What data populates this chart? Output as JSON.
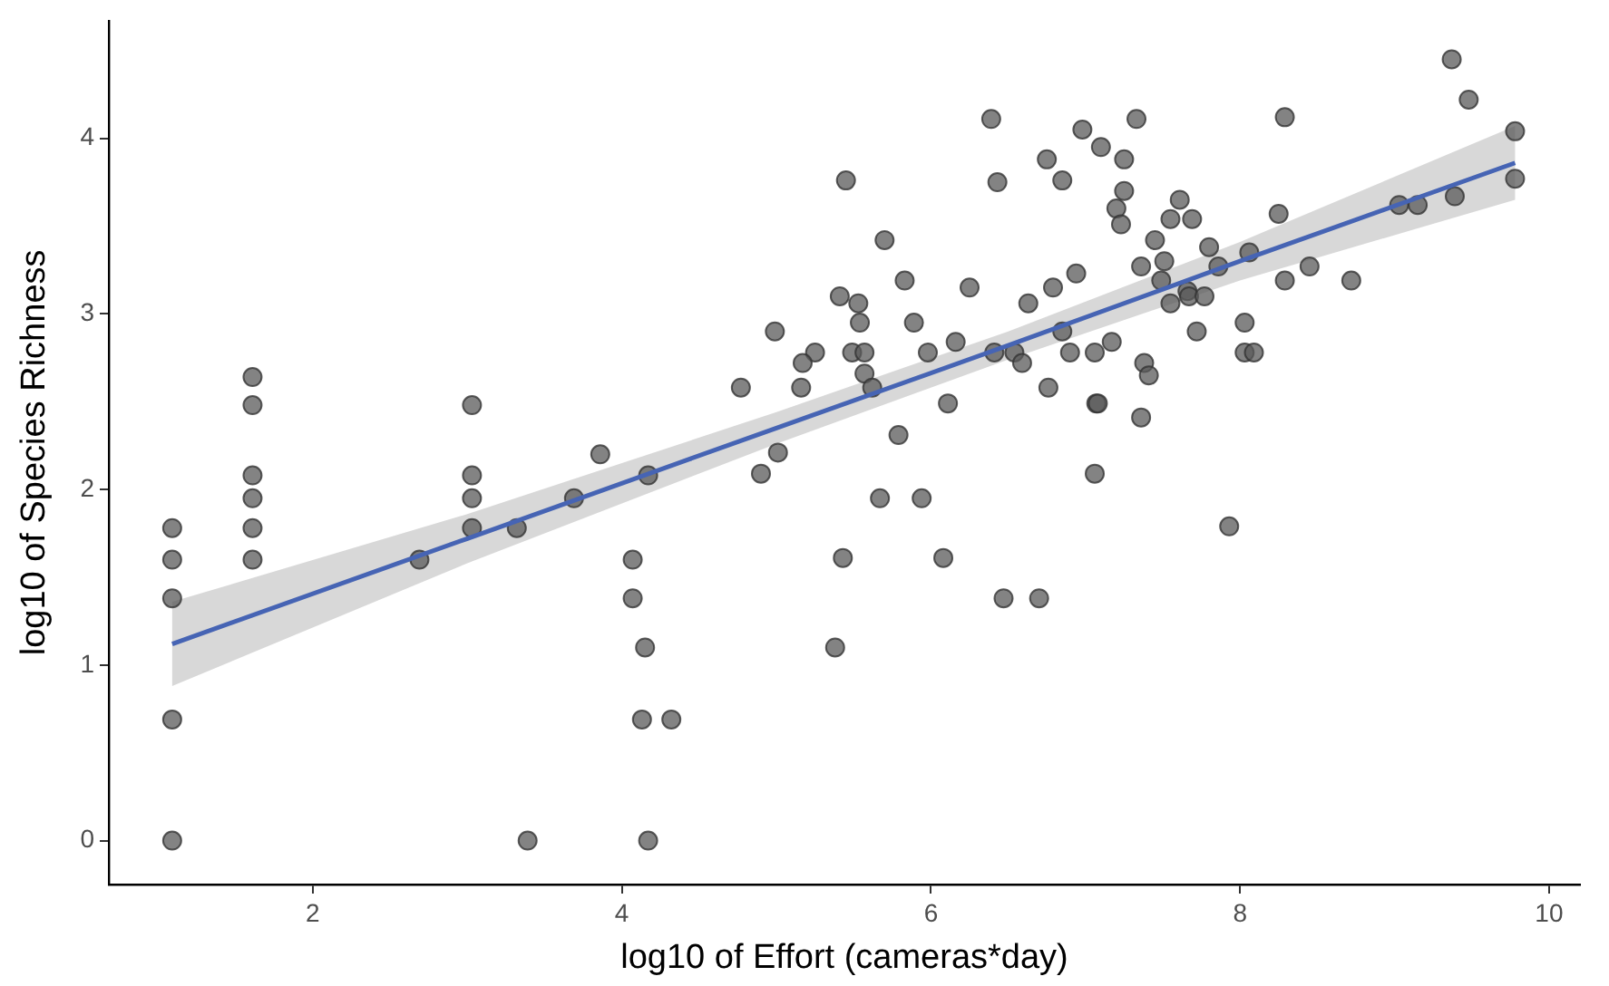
{
  "chart_data": {
    "type": "scatter",
    "xlabel": "log10 of Effort (cameras*day)",
    "ylabel": "log10 of Species Richness",
    "xlim": [
      0.68,
      10.2
    ],
    "ylim": [
      -0.25,
      4.67
    ],
    "xticks": [
      2,
      4,
      6,
      8,
      10
    ],
    "yticks": [
      0,
      1,
      2,
      3,
      4
    ],
    "grid": false,
    "legend": false,
    "marker": "circle",
    "series": [
      {
        "type": "scatter",
        "color": "#595959",
        "x": [
          1.09,
          1.09,
          1.09,
          1.09,
          1.09,
          1.61,
          1.61,
          1.61,
          1.61,
          1.61,
          1.61,
          2.69,
          3.03,
          3.03,
          3.03,
          3.03,
          3.32,
          3.39,
          3.69,
          3.86,
          4.07,
          4.07,
          4.15,
          4.13,
          4.17,
          4.17,
          4.32,
          6.39,
          5.45,
          6.43,
          6.98,
          6.75,
          6.85,
          7.1,
          5.7,
          5.83,
          5.41,
          5.53,
          5.54,
          6.25,
          6.94,
          6.79,
          6.63,
          5.89,
          4.99,
          5.25,
          5.17,
          5.49,
          5.57,
          5.98,
          6.16,
          6.85,
          6.41,
          6.54,
          6.59,
          6.9,
          7.06,
          5.57,
          5.62,
          4.77,
          5.16,
          6.11,
          6.76,
          7.07,
          5.79,
          5.01,
          4.9,
          7.06,
          5.67,
          5.94,
          5.43,
          6.08,
          6.47,
          6.7,
          5.38,
          7.33,
          7.25,
          7.25,
          7.2,
          7.23,
          7.61,
          7.55,
          7.69,
          7.45,
          7.36,
          7.51,
          7.49,
          7.8,
          7.86,
          8.06,
          8.29,
          8.25,
          8.29,
          8.45,
          8.72,
          7.66,
          7.67,
          7.77,
          7.55,
          7.72,
          8.03,
          8.03,
          8.09,
          7.17,
          7.38,
          7.41,
          7.08,
          7.36,
          7.93,
          9.03,
          9.15,
          9.39,
          9.37,
          9.48,
          9.78,
          9.78
        ],
        "values": [
          1.78,
          1.6,
          1.38,
          0.69,
          0,
          2.64,
          2.48,
          2.08,
          1.95,
          1.78,
          1.6,
          1.6,
          2.48,
          2.08,
          1.95,
          1.78,
          1.78,
          0,
          1.95,
          2.2,
          1.6,
          1.38,
          1.1,
          0.69,
          2.08,
          0,
          0.69,
          4.11,
          3.76,
          3.75,
          4.05,
          3.88,
          3.76,
          3.95,
          3.42,
          3.19,
          3.1,
          3.06,
          2.95,
          3.15,
          3.23,
          3.15,
          3.06,
          2.95,
          2.9,
          2.78,
          2.72,
          2.78,
          2.78,
          2.78,
          2.84,
          2.9,
          2.78,
          2.78,
          2.72,
          2.78,
          2.78,
          2.66,
          2.58,
          2.58,
          2.58,
          2.49,
          2.58,
          2.49,
          2.31,
          2.21,
          2.09,
          2.09,
          1.95,
          1.95,
          1.61,
          1.61,
          1.38,
          1.38,
          1.1,
          4.11,
          3.88,
          3.7,
          3.6,
          3.51,
          3.65,
          3.54,
          3.54,
          3.42,
          3.27,
          3.3,
          3.19,
          3.38,
          3.27,
          3.35,
          4.12,
          3.57,
          3.19,
          3.27,
          3.19,
          3.13,
          3.1,
          3.1,
          3.06,
          2.9,
          2.95,
          2.78,
          2.78,
          2.84,
          2.72,
          2.65,
          2.49,
          2.41,
          1.79,
          3.62,
          3.62,
          3.67,
          4.45,
          4.22,
          4.04,
          3.77
        ]
      },
      {
        "type": "line",
        "color": "#4664b4",
        "marker": "none",
        "line_style": "solid",
        "x": [
          1.09,
          3,
          5,
          6.5,
          8,
          9.78
        ],
        "values": [
          1.12,
          1.72,
          2.35,
          2.82,
          3.3,
          3.86
        ],
        "lower": [
          0.88,
          1.58,
          2.26,
          2.74,
          3.19,
          3.65
        ],
        "upper": [
          1.36,
          1.86,
          2.44,
          2.9,
          3.41,
          4.07
        ]
      }
    ]
  }
}
